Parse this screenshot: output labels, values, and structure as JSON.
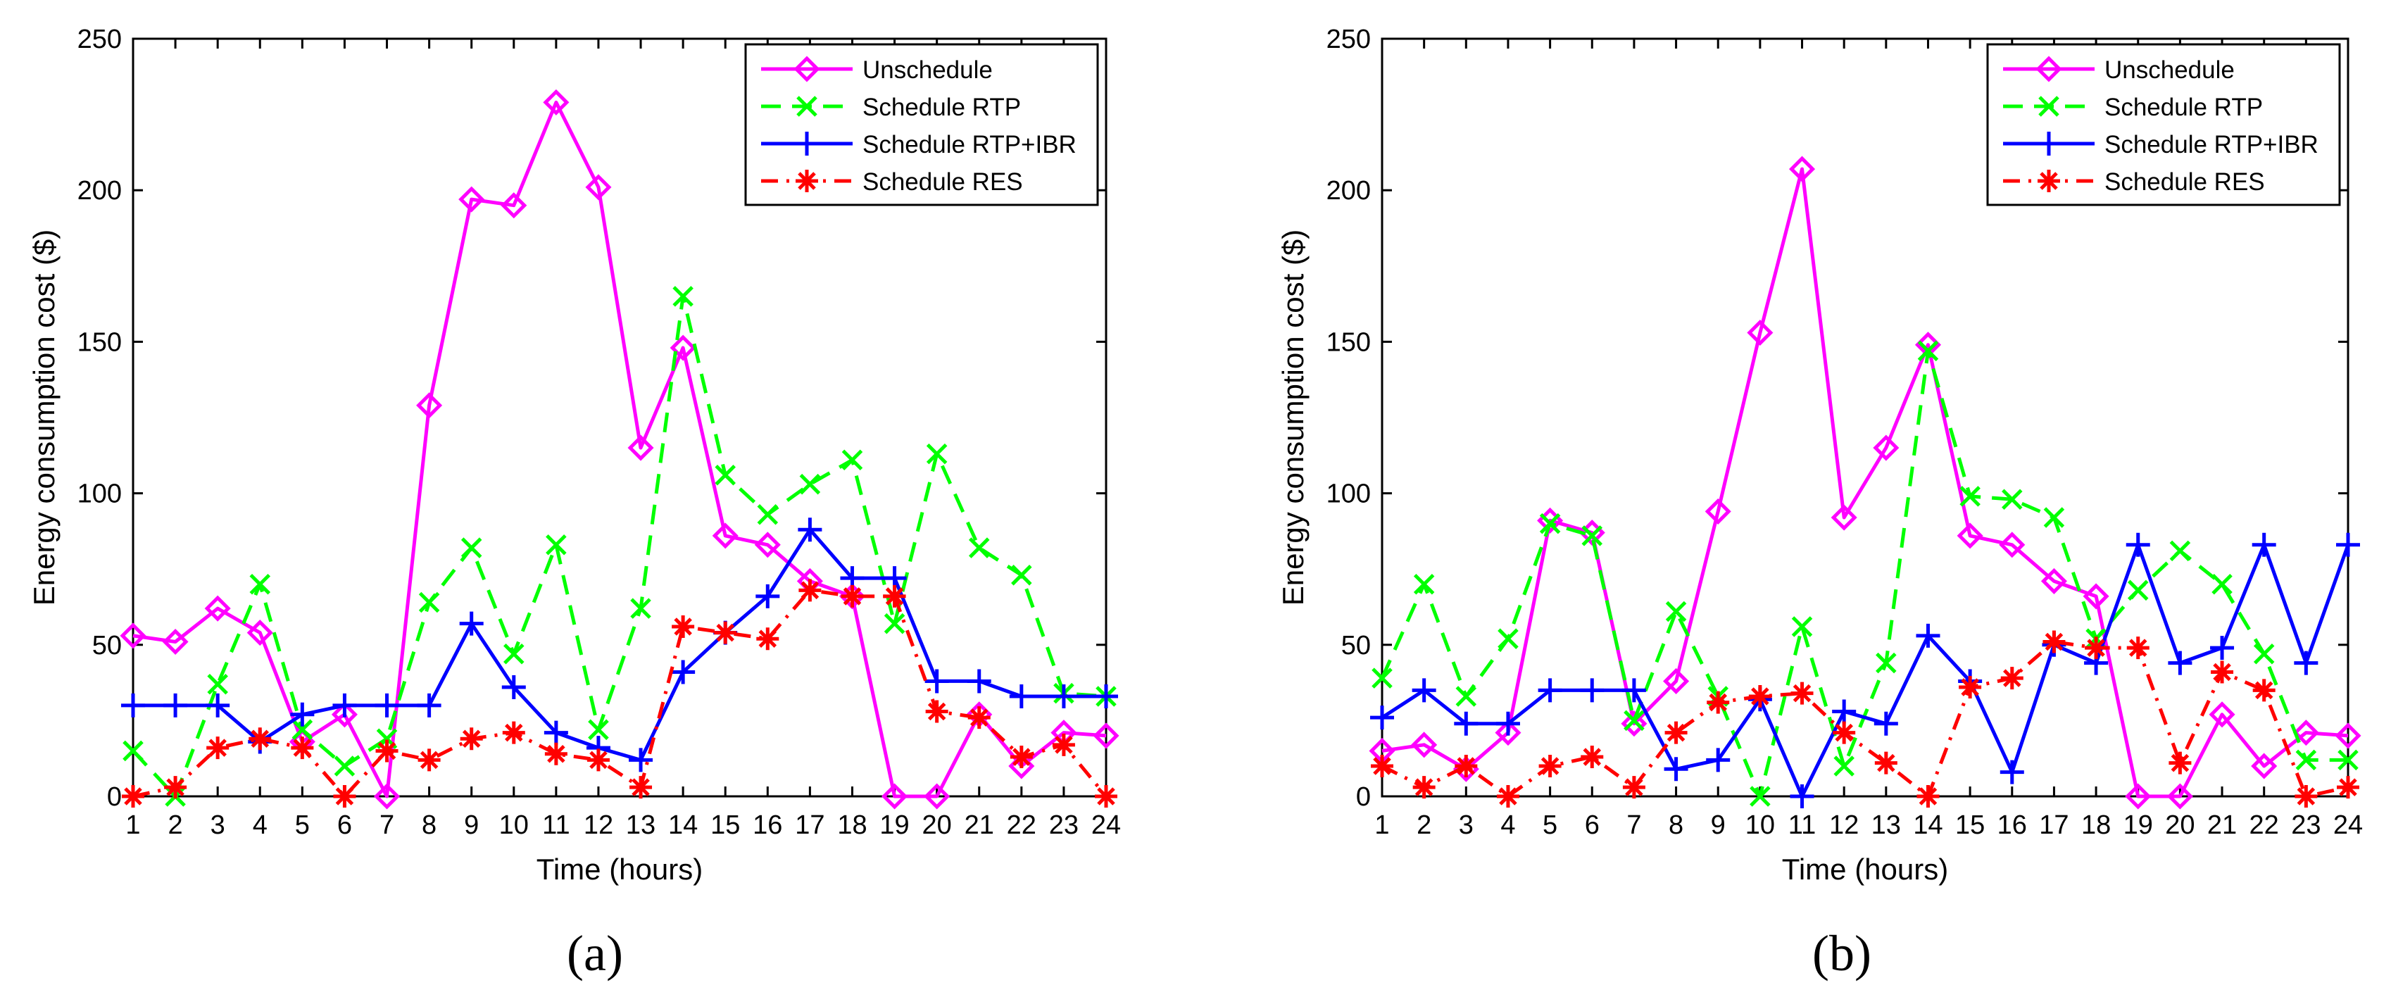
{
  "figure": {
    "panels": [
      {
        "caption": "(a)"
      },
      {
        "caption": "(b)"
      }
    ]
  },
  "chart_data": [
    {
      "type": "line",
      "title": "",
      "xlabel": "Time (hours)",
      "ylabel": "Energy consumption cost ($)",
      "xlim": [
        1,
        24
      ],
      "ylim": [
        0,
        250
      ],
      "xticks": [
        "1",
        "2",
        "3",
        "4",
        "5",
        "6",
        "7",
        "8",
        "9",
        "10",
        "11",
        "12",
        "13",
        "14",
        "15",
        "16",
        "17",
        "18",
        "19",
        "20",
        "21",
        "22",
        "23",
        "24"
      ],
      "yticks": [
        "0",
        "50",
        "100",
        "150",
        "200",
        "250"
      ],
      "legend": "top-right",
      "x": [
        1,
        2,
        3,
        4,
        5,
        6,
        7,
        8,
        9,
        10,
        11,
        12,
        13,
        14,
        15,
        16,
        17,
        18,
        19,
        20,
        21,
        22,
        23,
        24
      ],
      "series": [
        {
          "name": "Unschedule",
          "color": "#ff00ff",
          "marker": "diamond",
          "dash": "solid",
          "values": [
            53,
            51,
            62,
            54,
            18,
            27,
            0,
            129,
            197,
            195,
            229,
            201,
            115,
            148,
            86,
            83,
            71,
            66,
            0,
            0,
            27,
            10,
            21,
            20
          ]
        },
        {
          "name": "Schedule RTP",
          "color": "#00ff00",
          "marker": "x",
          "dash": "dashed",
          "values": [
            15,
            0,
            37,
            70,
            22,
            10,
            19,
            64,
            82,
            47,
            83,
            22,
            62,
            165,
            106,
            93,
            103,
            111,
            57,
            113,
            82,
            73,
            34,
            33
          ]
        },
        {
          "name": "Schedule RTP+IBR",
          "color": "#0000ff",
          "marker": "plus",
          "dash": "solid",
          "values": [
            30,
            30,
            30,
            18,
            27,
            30,
            30,
            30,
            57,
            36,
            21,
            16,
            12,
            41,
            54,
            66,
            88,
            72,
            72,
            38,
            38,
            33,
            33,
            33
          ]
        },
        {
          "name": "Schedule RES",
          "color": "#ff0000",
          "marker": "asterisk",
          "dash": "dashdot",
          "values": [
            0,
            3,
            16,
            19,
            16,
            0,
            15,
            12,
            19,
            21,
            14,
            12,
            3,
            56,
            54,
            52,
            68,
            66,
            66,
            28,
            26,
            13,
            17,
            0
          ]
        }
      ]
    },
    {
      "type": "line",
      "title": "",
      "xlabel": "Time (hours)",
      "ylabel": "Energy consumption cost ($)",
      "xlim": [
        1,
        24
      ],
      "ylim": [
        0,
        250
      ],
      "xticks": [
        "1",
        "2",
        "3",
        "4",
        "5",
        "6",
        "7",
        "8",
        "9",
        "10",
        "11",
        "12",
        "13",
        "14",
        "15",
        "16",
        "17",
        "18",
        "19",
        "20",
        "21",
        "22",
        "23",
        "24"
      ],
      "yticks": [
        "0",
        "50",
        "100",
        "150",
        "200",
        "250"
      ],
      "legend": "top-right",
      "x": [
        1,
        2,
        3,
        4,
        5,
        6,
        7,
        8,
        9,
        10,
        11,
        12,
        13,
        14,
        15,
        16,
        17,
        18,
        19,
        20,
        21,
        22,
        23,
        24
      ],
      "series": [
        {
          "name": "Unschedule",
          "color": "#ff00ff",
          "marker": "diamond",
          "dash": "solid",
          "values": [
            15,
            17,
            9,
            21,
            91,
            87,
            24,
            38,
            94,
            153,
            207,
            92,
            115,
            149,
            86,
            83,
            71,
            66,
            0,
            0,
            27,
            10,
            21,
            20
          ]
        },
        {
          "name": "Schedule RTP",
          "color": "#00ff00",
          "marker": "x",
          "dash": "dashed",
          "values": [
            39,
            70,
            33,
            52,
            90,
            86,
            25,
            61,
            33,
            0,
            56,
            10,
            44,
            147,
            99,
            98,
            92,
            52,
            68,
            81,
            70,
            47,
            12,
            12
          ]
        },
        {
          "name": "Schedule RTP+IBR",
          "color": "#0000ff",
          "marker": "plus",
          "dash": "solid",
          "values": [
            26,
            35,
            24,
            24,
            35,
            35,
            35,
            9,
            12,
            32,
            0,
            28,
            24,
            53,
            38,
            8,
            50,
            44,
            83,
            44,
            49,
            83,
            44,
            83
          ]
        },
        {
          "name": "Schedule RES",
          "color": "#ff0000",
          "marker": "asterisk",
          "dash": "dashdot",
          "values": [
            10,
            3,
            10,
            0,
            10,
            13,
            3,
            21,
            31,
            33,
            34,
            21,
            11,
            0,
            36,
            39,
            51,
            49,
            49,
            11,
            41,
            35,
            0,
            3
          ]
        }
      ]
    }
  ]
}
